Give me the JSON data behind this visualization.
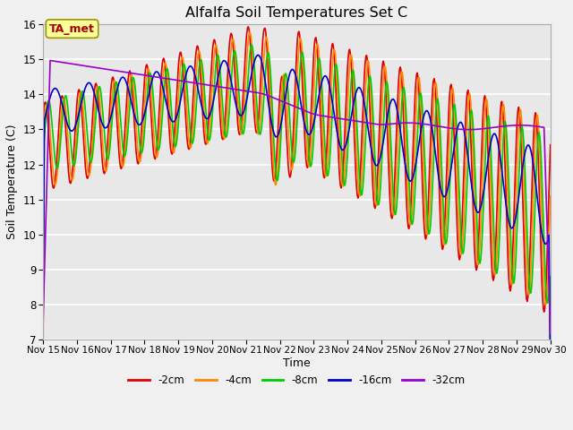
{
  "title": "Alfalfa Soil Temperatures Set C",
  "xlabel": "Time",
  "ylabel": "Soil Temperature (C)",
  "ylim": [
    7.0,
    16.0
  ],
  "xlim": [
    0,
    15
  ],
  "yticks": [
    7.0,
    8.0,
    9.0,
    10.0,
    11.0,
    12.0,
    13.0,
    14.0,
    15.0,
    16.0
  ],
  "xtick_labels": [
    "Nov 15",
    "Nov 16",
    "Nov 17",
    "Nov 18",
    "Nov 19",
    "Nov 20",
    "Nov 21",
    "Nov 22",
    "Nov 23",
    "Nov 24",
    "Nov 25",
    "Nov 26",
    "Nov 27",
    "Nov 28",
    "Nov 29",
    "Nov 30"
  ],
  "series": {
    "-2cm": {
      "color": "#dd0000",
      "lw": 1.2
    },
    "-4cm": {
      "color": "#ff8800",
      "lw": 1.2
    },
    "-8cm": {
      "color": "#00cc00",
      "lw": 1.2
    },
    "-16cm": {
      "color": "#0000cc",
      "lw": 1.2
    },
    "-32cm": {
      "color": "#9900cc",
      "lw": 1.2
    }
  },
  "background_color": "#e8e8e8",
  "plot_bg_color": "#e8e8e8",
  "fig_bg_color": "#f0f0f0",
  "grid_color": "#ffffff",
  "ta_met_box": {
    "text": "TA_met",
    "facecolor": "#ffff99",
    "edgecolor": "#999900",
    "textcolor": "#aa0000"
  }
}
